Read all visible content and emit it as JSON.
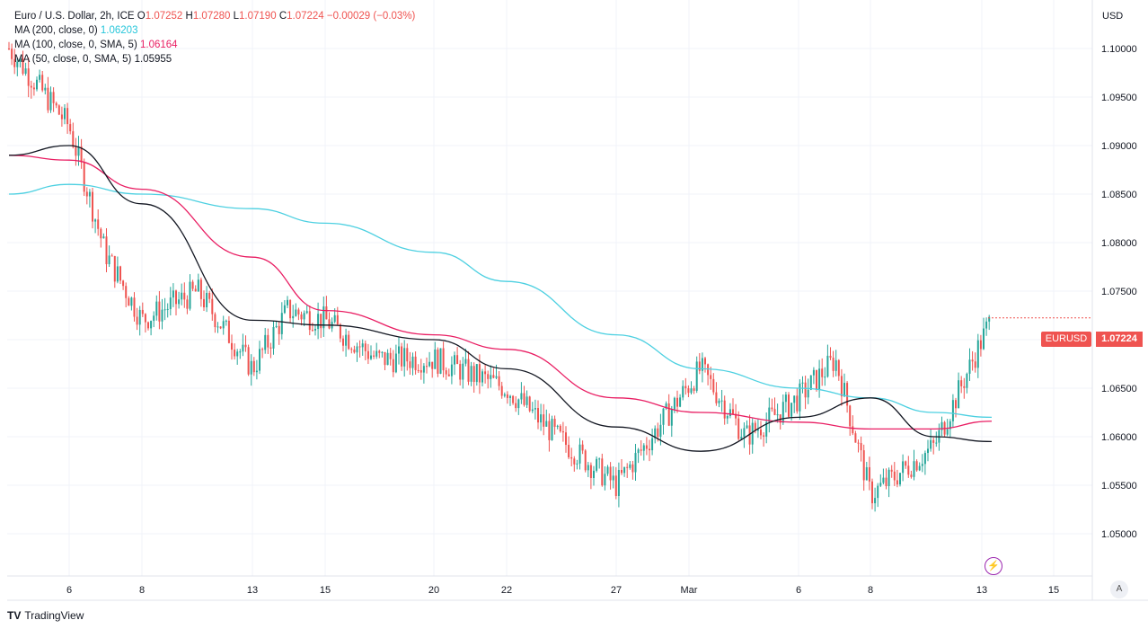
{
  "legend": {
    "symbol": "Euro / U.S. Dollar, 2h, ICE",
    "o_label": "O",
    "o_value": "1.07252",
    "h_label": "H",
    "h_value": "1.07280",
    "l_label": "L",
    "l_value": "1.07190",
    "c_label": "C",
    "c_value": "1.07224",
    "change": "−0.00029 (−0.03%)",
    "ma200_label": "MA (200, close, 0)",
    "ma200_value": "1.06203",
    "ma100_label": "MA (100, close, 0, SMA, 5)",
    "ma100_value": "1.06164",
    "ma50_label": "MA (50, close, 0, SMA, 5)",
    "ma50_value": "1.05955"
  },
  "price_axis": {
    "currency": "USD",
    "ticks": [
      "1.10000",
      "1.09500",
      "1.09000",
      "1.08500",
      "1.08000",
      "1.07500",
      "1.07000",
      "1.06500",
      "1.06000",
      "1.05500",
      "1.05000"
    ]
  },
  "time_axis": {
    "ticks": [
      "6",
      "8",
      "13",
      "15",
      "20",
      "22",
      "27",
      "Mar",
      "6",
      "8",
      "13",
      "15"
    ]
  },
  "last_price": {
    "ticker": "EURUSD",
    "value": "1.07224"
  },
  "auto_label": "A",
  "brand": "TradingView",
  "colors": {
    "up": "#26a69a",
    "down": "#ef5350",
    "ma200": "#4dd0e1",
    "ma100": "#e91e63",
    "ma50": "#131722"
  },
  "chart_data": {
    "type": "candlestick",
    "title": "Euro / U.S. Dollar, 2h, ICE",
    "ylabel": "USD",
    "ylim": [
      1.0475,
      1.1025
    ],
    "grid": true,
    "series": [
      {
        "name": "MA (200, close, 0)",
        "kind": "line",
        "x": [
          "Feb 3",
          "Feb 6",
          "Feb 8",
          "Feb 13",
          "Feb 15",
          "Feb 20",
          "Feb 22",
          "Feb 27",
          "Mar 1",
          "Mar 6",
          "Mar 8",
          "Mar 10",
          "Mar 13"
        ],
        "values": [
          1.085,
          1.086,
          1.085,
          1.0835,
          1.082,
          1.079,
          1.076,
          1.0705,
          1.067,
          1.065,
          1.064,
          1.0625,
          1.062
        ]
      },
      {
        "name": "MA (100, close, 0, SMA, 5)",
        "kind": "line",
        "x": [
          "Feb 3",
          "Feb 6",
          "Feb 8",
          "Feb 13",
          "Feb 15",
          "Feb 20",
          "Feb 22",
          "Feb 27",
          "Mar 1",
          "Mar 6",
          "Mar 8",
          "Mar 10",
          "Mar 13"
        ],
        "values": [
          1.089,
          1.0885,
          1.0855,
          1.0785,
          1.073,
          1.0705,
          1.069,
          1.064,
          1.0625,
          1.0615,
          1.0608,
          1.0608,
          1.0616
        ]
      },
      {
        "name": "MA (50, close, 0, SMA, 5)",
        "kind": "line",
        "x": [
          "Feb 3",
          "Feb 6",
          "Feb 8",
          "Feb 13",
          "Feb 15",
          "Feb 20",
          "Feb 22",
          "Feb 27",
          "Mar 1",
          "Mar 6",
          "Mar 8",
          "Mar 10",
          "Mar 13"
        ],
        "values": [
          1.089,
          1.09,
          1.084,
          1.072,
          1.0715,
          1.07,
          1.067,
          1.061,
          1.0585,
          1.062,
          1.064,
          1.06,
          1.0595
        ]
      },
      {
        "name": "EURUSD",
        "kind": "close",
        "x": [
          "Feb 3",
          "Feb 6",
          "Feb 7",
          "Feb 8",
          "Feb 10",
          "Feb 13",
          "Feb 14",
          "Feb 15",
          "Feb 17",
          "Feb 20",
          "Feb 22",
          "Feb 24",
          "Feb 27",
          "Mar 1",
          "Mar 3",
          "Mar 6",
          "Mar 7",
          "Mar 8",
          "Mar 10",
          "Mar 13"
        ],
        "values": [
          1.1,
          1.092,
          1.079,
          1.072,
          1.075,
          1.067,
          1.073,
          1.072,
          1.068,
          1.068,
          1.065,
          1.06,
          1.055,
          1.067,
          1.06,
          1.064,
          1.068,
          1.054,
          1.059,
          1.07224
        ]
      }
    ]
  }
}
